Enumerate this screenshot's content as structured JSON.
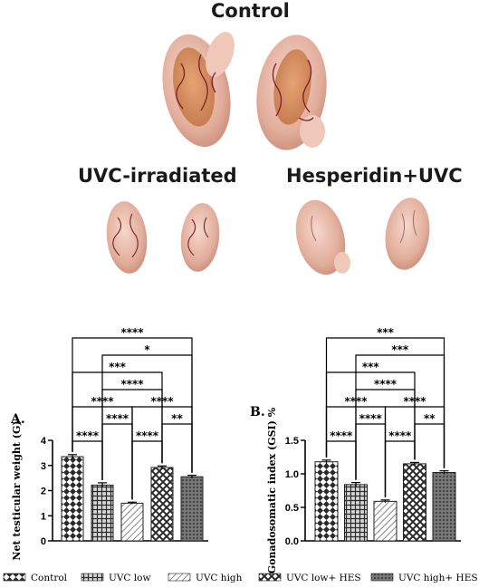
{
  "photos": {
    "control_label": "Control",
    "uvc_label": "UVC-irradiated",
    "hes_label": "Hesperidin+UVC"
  },
  "colors": {
    "bar_stroke": "#222222",
    "tissue": "#e7b7a6",
    "tissue_shadow": "#c98b7a",
    "vessel": "#7a1f2b"
  },
  "chart_data": [
    {
      "type": "bar",
      "panel": "A.",
      "title": "",
      "xlabel": "",
      "ylabel": "Net testicular weight (G)",
      "ylim": [
        0,
        4
      ],
      "yticks": [
        "0",
        "1",
        "2",
        "3",
        "4"
      ],
      "categories": [
        "Control",
        "UVC low",
        "UVC high",
        "UVC low+ HES",
        "UVC high+ HES"
      ],
      "values": [
        3.35,
        2.22,
        1.5,
        2.92,
        2.55
      ],
      "errors": [
        0.08,
        0.09,
        0.04,
        0.06,
        0.06
      ],
      "comparisons": [
        {
          "from": 0,
          "to": 1,
          "label": "****"
        },
        {
          "from": 2,
          "to": 3,
          "label": "****"
        },
        {
          "from": 1,
          "to": 2,
          "label": "****"
        },
        {
          "from": 3,
          "to": 4,
          "label": "**"
        },
        {
          "from": 0,
          "to": 2,
          "label": "****"
        },
        {
          "from": 2,
          "to": 4,
          "label": "****"
        },
        {
          "from": 1,
          "to": 3,
          "label": "****"
        },
        {
          "from": 0,
          "to": 3,
          "label": "***"
        },
        {
          "from": 1,
          "to": 4,
          "label": "*"
        },
        {
          "from": 0,
          "to": 4,
          "label": "****"
        }
      ]
    },
    {
      "type": "bar",
      "panel": "B.",
      "title": "",
      "xlabel": "",
      "ylabel": "Gonadosomatic index (GSI) %",
      "ylim": [
        0,
        1.5
      ],
      "yticks": [
        "0.0",
        "0.5",
        "1.0",
        "1.5"
      ],
      "categories": [
        "Control",
        "UVC low",
        "UVC high",
        "UVC low+ HES",
        "UVC high+ HES"
      ],
      "values": [
        1.18,
        0.84,
        0.59,
        1.15,
        1.02
      ],
      "errors": [
        0.025,
        0.03,
        0.02,
        0.02,
        0.025
      ],
      "comparisons": [
        {
          "from": 0,
          "to": 1,
          "label": "****"
        },
        {
          "from": 2,
          "to": 3,
          "label": "****"
        },
        {
          "from": 1,
          "to": 2,
          "label": "****"
        },
        {
          "from": 3,
          "to": 4,
          "label": "**"
        },
        {
          "from": 0,
          "to": 2,
          "label": "****"
        },
        {
          "from": 2,
          "to": 4,
          "label": "****"
        },
        {
          "from": 1,
          "to": 3,
          "label": "****"
        },
        {
          "from": 0,
          "to": 3,
          "label": "***"
        },
        {
          "from": 1,
          "to": 4,
          "label": "***"
        },
        {
          "from": 0,
          "to": 4,
          "label": "***"
        }
      ]
    }
  ],
  "legend": {
    "placement": "bottom",
    "items": [
      "Control",
      "UVC low",
      "UVC high",
      "UVC low+ HES",
      "UVC high+ HES"
    ]
  }
}
